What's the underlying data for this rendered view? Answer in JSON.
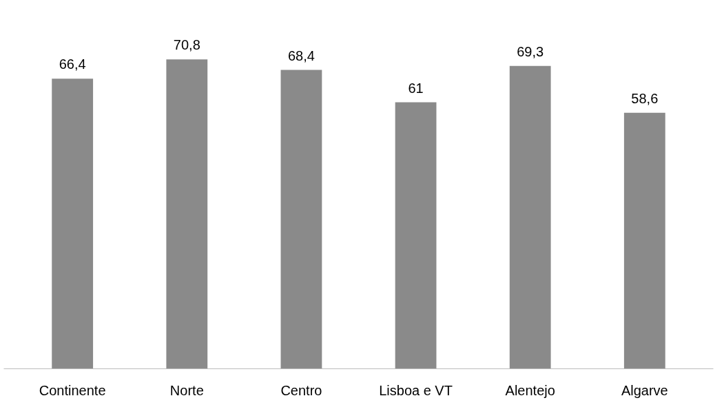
{
  "chart_data": {
    "type": "bar",
    "categories": [
      "Continente",
      "Norte",
      "Centro",
      "Lisboa e VT",
      "Alentejo",
      "Algarve"
    ],
    "values": [
      66.4,
      70.8,
      68.4,
      61,
      69.3,
      58.6
    ],
    "value_labels": [
      "66,4",
      "70,8",
      "68,4",
      "61",
      "69,3",
      "58,6"
    ],
    "color": "#8a8a8a",
    "grid": false
  }
}
